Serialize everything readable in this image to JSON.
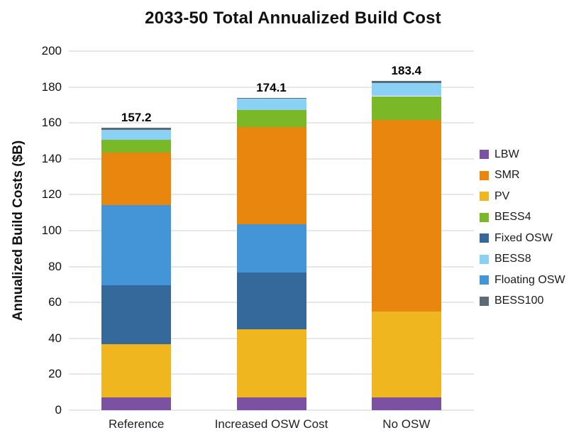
{
  "figure": {
    "background": "#ffffff",
    "gridline_color": "#e5e8ea"
  },
  "chart_data": {
    "type": "bar",
    "stacked": true,
    "title": "2033-50 Total Annualized Build Cost",
    "ylabel": "Annualized Build Costs ($B)",
    "xlabel": "",
    "categories": [
      "Reference",
      "Increased OSW Cost",
      "No OSW"
    ],
    "ylim": [
      0,
      200
    ],
    "ytick_step": 20,
    "grid": true,
    "legend_position": "right",
    "series": [
      {
        "name": "LBW",
        "color": "#7c51a1",
        "values": [
          7.0,
          7.0,
          7.0
        ]
      },
      {
        "name": "PV",
        "color": "#efb61f",
        "values": [
          29.6,
          38.0,
          48.0
        ]
      },
      {
        "name": "Fixed OSW",
        "color": "#35699b",
        "values": [
          33.1,
          31.6,
          0.0
        ]
      },
      {
        "name": "Floating OSW",
        "color": "#4495d8",
        "values": [
          44.7,
          27.1,
          0.0
        ]
      },
      {
        "name": "SMR",
        "color": "#e8860d",
        "values": [
          28.9,
          54.0,
          106.6
        ]
      },
      {
        "name": "BESS4",
        "color": "#7ab828",
        "values": [
          7.3,
          9.3,
          13.3
        ]
      },
      {
        "name": "BESS8",
        "color": "#8bd1f6",
        "values": [
          5.4,
          6.5,
          7.4
        ]
      },
      {
        "name": "BESS100",
        "color": "#5d6b77",
        "values": [
          1.2,
          0.6,
          1.1
        ]
      }
    ],
    "totals": [
      157.2,
      174.1,
      183.4
    ],
    "legend_order": [
      "LBW",
      "SMR",
      "PV",
      "BESS4",
      "Fixed OSW",
      "BESS8",
      "Floating OSW",
      "BESS100"
    ]
  }
}
